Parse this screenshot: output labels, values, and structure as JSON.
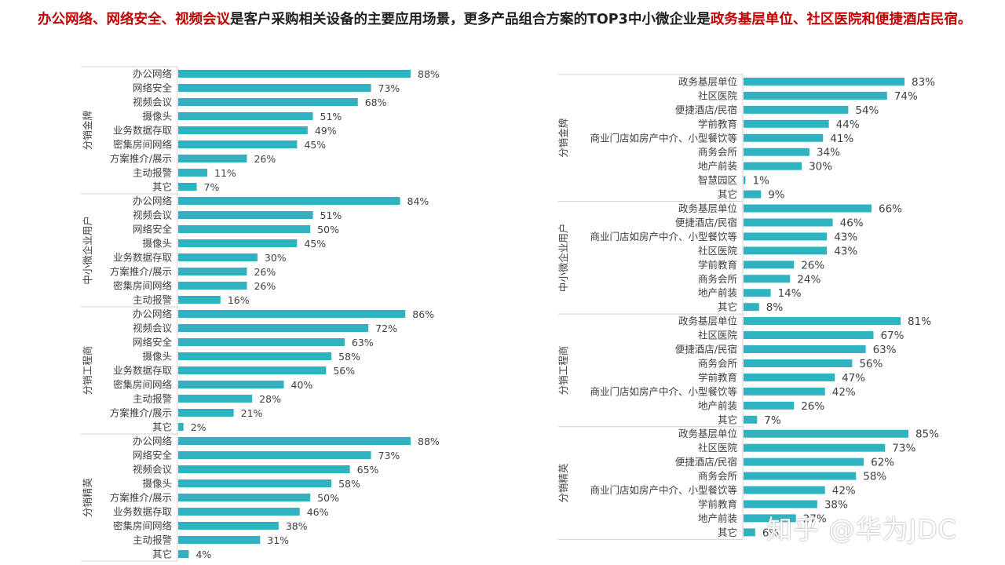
{
  "title": {
    "segments": [
      {
        "text": "办公网络、网络安全、视频会议",
        "highlight": true
      },
      {
        "text": "是客户采购相关设备的主要应用场景，更多产品组合方案的TOP3中小微企业是",
        "highlight": false
      },
      {
        "text": "政务基层单位、社区医院和便捷酒店民宿。",
        "highlight": true
      }
    ]
  },
  "colors": {
    "bar": "#2fb3c0",
    "highlight": "#c00000",
    "text": "#404040",
    "axis": "#d0d0d0"
  },
  "watermark": "知乎 @华为JDC",
  "chart_data": [
    {
      "type": "bar",
      "orientation": "horizontal",
      "xlim": [
        0,
        100
      ],
      "value_suffix": "%",
      "groups": [
        {
          "name": "分销金牌",
          "categories": [
            "办公网络",
            "网络安全",
            "视频会议",
            "摄像头",
            "业务数据存取",
            "密集房间网络",
            "方案推介/展示",
            "主动报警",
            "其它"
          ],
          "values": [
            88,
            73,
            68,
            51,
            49,
            45,
            26,
            11,
            7
          ]
        },
        {
          "name": "中小微企业用户",
          "categories": [
            "办公网络",
            "视频会议",
            "网络安全",
            "摄像头",
            "业务数据存取",
            "方案推介/展示",
            "密集房间网络",
            "主动报警"
          ],
          "values": [
            84,
            51,
            50,
            45,
            30,
            26,
            26,
            16
          ]
        },
        {
          "name": "分销工程商",
          "categories": [
            "办公网络",
            "视频会议",
            "网络安全",
            "摄像头",
            "业务数据存取",
            "密集房间网络",
            "主动报警",
            "方案推介/展示",
            "其它"
          ],
          "values": [
            86,
            72,
            63,
            58,
            56,
            40,
            28,
            21,
            2
          ]
        },
        {
          "name": "分销精英",
          "categories": [
            "办公网络",
            "网络安全",
            "视频会议",
            "摄像头",
            "方案推介/展示",
            "业务数据存取",
            "密集房间网络",
            "主动报警",
            "其它"
          ],
          "values": [
            88,
            73,
            65,
            58,
            50,
            46,
            38,
            31,
            4
          ]
        }
      ]
    },
    {
      "type": "bar",
      "orientation": "horizontal",
      "xlim": [
        0,
        100
      ],
      "value_suffix": "%",
      "groups": [
        {
          "name": "分销金牌",
          "categories": [
            "政务基层单位",
            "社区医院",
            "便捷酒店/民宿",
            "学前教育",
            "商业门店如房产中介、小型餐饮等",
            "商务会所",
            "地产前装",
            "智慧园区",
            "其它"
          ],
          "values": [
            83,
            74,
            54,
            44,
            41,
            34,
            30,
            1,
            9
          ]
        },
        {
          "name": "中小微企业用户",
          "categories": [
            "政务基层单位",
            "便捷酒店/民宿",
            "商业门店如房产中介、小型餐饮等",
            "社区医院",
            "学前教育",
            "商务会所",
            "地产前装",
            "其它"
          ],
          "values": [
            66,
            46,
            43,
            43,
            26,
            24,
            14,
            8
          ]
        },
        {
          "name": "分销工程商",
          "categories": [
            "政务基层单位",
            "社区医院",
            "便捷酒店/民宿",
            "商务会所",
            "学前教育",
            "商业门店如房产中介、小型餐饮等",
            "地产前装",
            "其它"
          ],
          "values": [
            81,
            67,
            63,
            56,
            47,
            42,
            26,
            7
          ]
        },
        {
          "name": "分销精英",
          "categories": [
            "政务基层单位",
            "社区医院",
            "便捷酒店/民宿",
            "商务会所",
            "商业门店如房产中介、小型餐饮等",
            "学前教育",
            "地产前装",
            "其它"
          ],
          "values": [
            85,
            73,
            62,
            58,
            42,
            38,
            27,
            6
          ]
        }
      ]
    }
  ]
}
